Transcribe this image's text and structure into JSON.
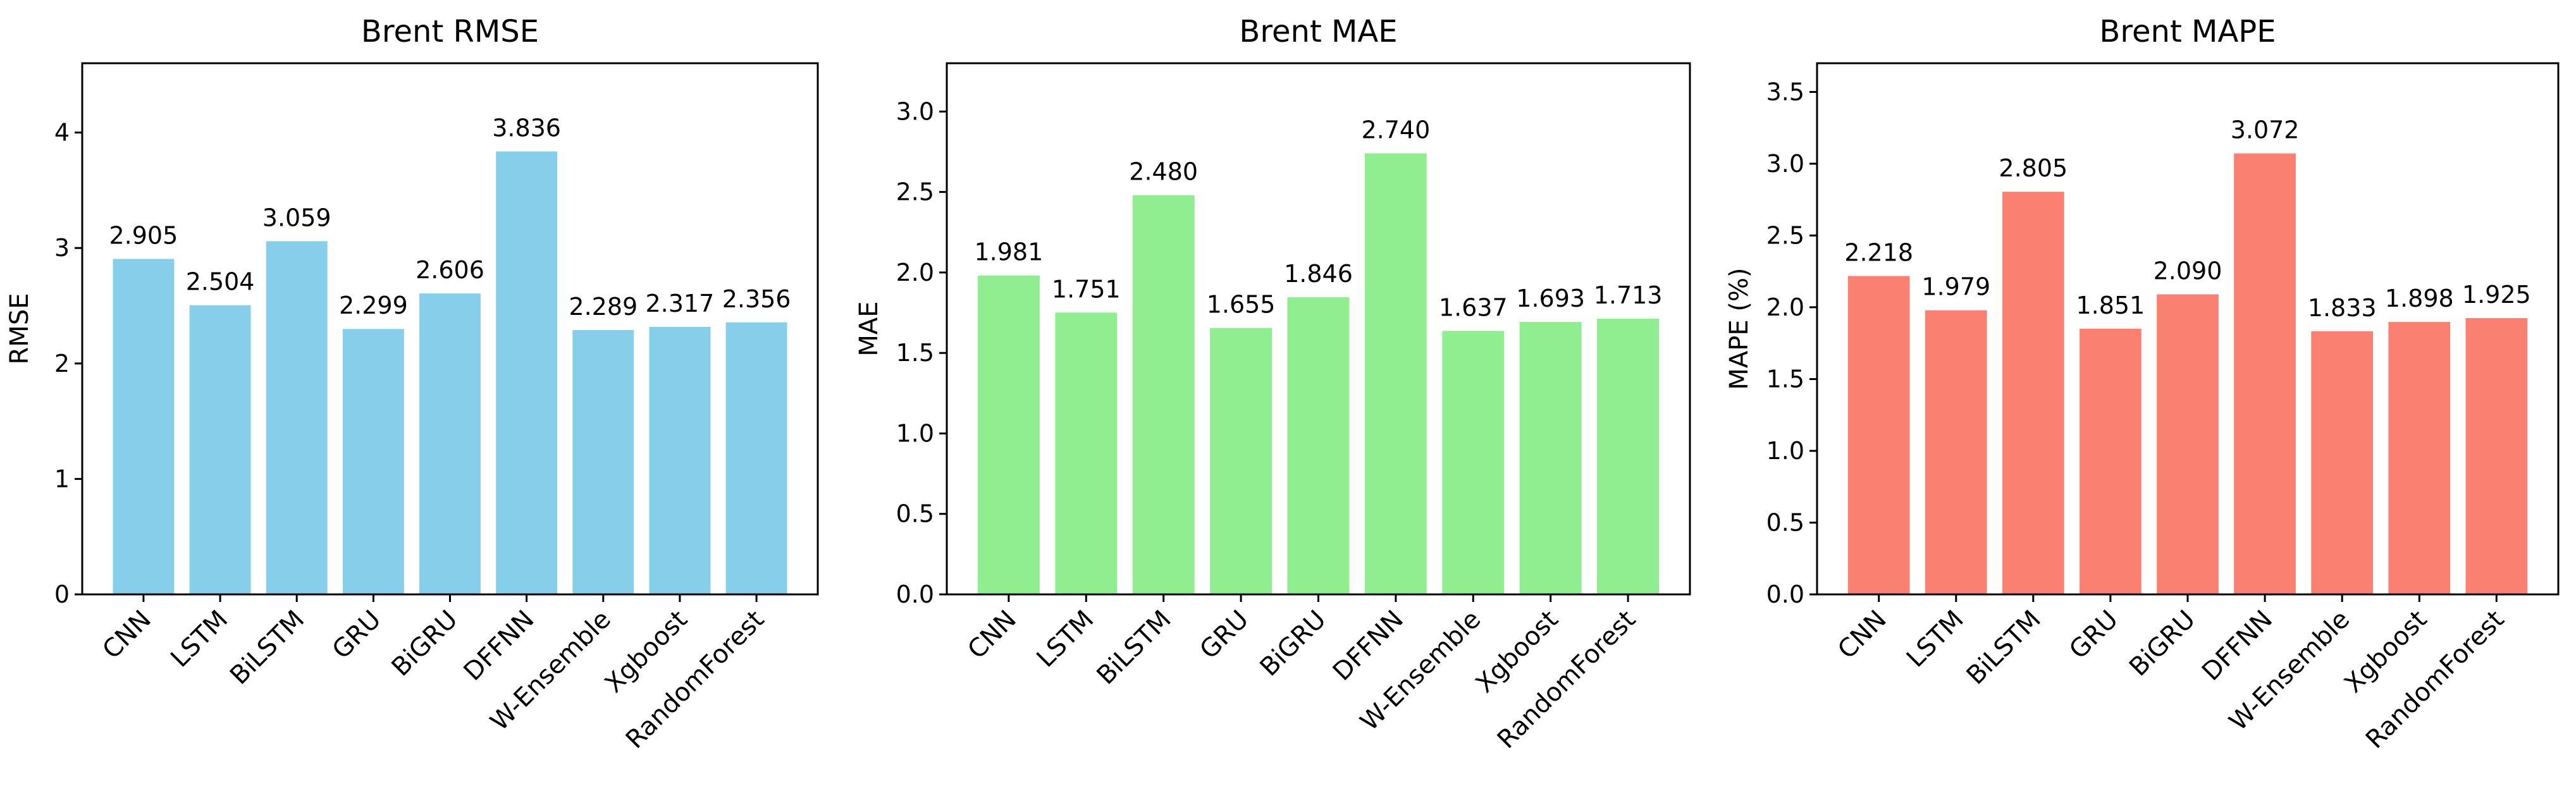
{
  "chart_data": [
    {
      "type": "bar",
      "title": "Brent RMSE",
      "xlabel": "",
      "ylabel": "RMSE",
      "ylim": [
        0,
        4.6
      ],
      "yticks": [
        0,
        1,
        2,
        3,
        4
      ],
      "ytick_labels": [
        "0",
        "1",
        "2",
        "3",
        "4"
      ],
      "color": "#87CEEB",
      "categories": [
        "CNN",
        "LSTM",
        "BiLSTM",
        "GRU",
        "BiGRU",
        "DFFNN",
        "W-Ensemble",
        "Xgboost",
        "RandomForest"
      ],
      "values": [
        2.905,
        2.504,
        3.059,
        2.299,
        2.606,
        3.836,
        2.289,
        2.317,
        2.356
      ],
      "value_labels": [
        "2.905",
        "2.504",
        "3.059",
        "2.299",
        "2.606",
        "3.836",
        "2.289",
        "2.317",
        "2.356"
      ],
      "grid": false,
      "legend": "none"
    },
    {
      "type": "bar",
      "title": "Brent MAE",
      "xlabel": "",
      "ylabel": "MAE",
      "ylim": [
        0,
        3.3
      ],
      "yticks": [
        0,
        0.5,
        1,
        1.5,
        2,
        2.5,
        3
      ],
      "ytick_labels": [
        "0.0",
        "0.5",
        "1.0",
        "1.5",
        "2.0",
        "2.5",
        "3.0"
      ],
      "color": "#90EE90",
      "categories": [
        "CNN",
        "LSTM",
        "BiLSTM",
        "GRU",
        "BiGRU",
        "DFFNN",
        "W-Ensemble",
        "Xgboost",
        "RandomForest"
      ],
      "values": [
        1.981,
        1.751,
        2.48,
        1.655,
        1.846,
        2.74,
        1.637,
        1.693,
        1.713
      ],
      "value_labels": [
        "1.981",
        "1.751",
        "2.480",
        "1.655",
        "1.846",
        "2.740",
        "1.637",
        "1.693",
        "1.713"
      ],
      "grid": false,
      "legend": "none"
    },
    {
      "type": "bar",
      "title": "Brent MAPE",
      "xlabel": "",
      "ylabel": "MAPE (%)",
      "ylim": [
        0,
        3.7
      ],
      "yticks": [
        0,
        0.5,
        1,
        1.5,
        2,
        2.5,
        3,
        3.5
      ],
      "ytick_labels": [
        "0.0",
        "0.5",
        "1.0",
        "1.5",
        "2.0",
        "2.5",
        "3.0",
        "3.5"
      ],
      "color": "#FA8072",
      "categories": [
        "CNN",
        "LSTM",
        "BiLSTM",
        "GRU",
        "BiGRU",
        "DFFNN",
        "W-Ensemble",
        "Xgboost",
        "RandomForest"
      ],
      "values": [
        2.218,
        1.979,
        2.805,
        1.851,
        2.09,
        3.072,
        1.833,
        1.898,
        1.925
      ],
      "value_labels": [
        "2.218",
        "1.979",
        "2.805",
        "1.851",
        "2.090",
        "3.072",
        "1.833",
        "1.898",
        "1.925"
      ],
      "grid": false,
      "legend": "none"
    }
  ]
}
